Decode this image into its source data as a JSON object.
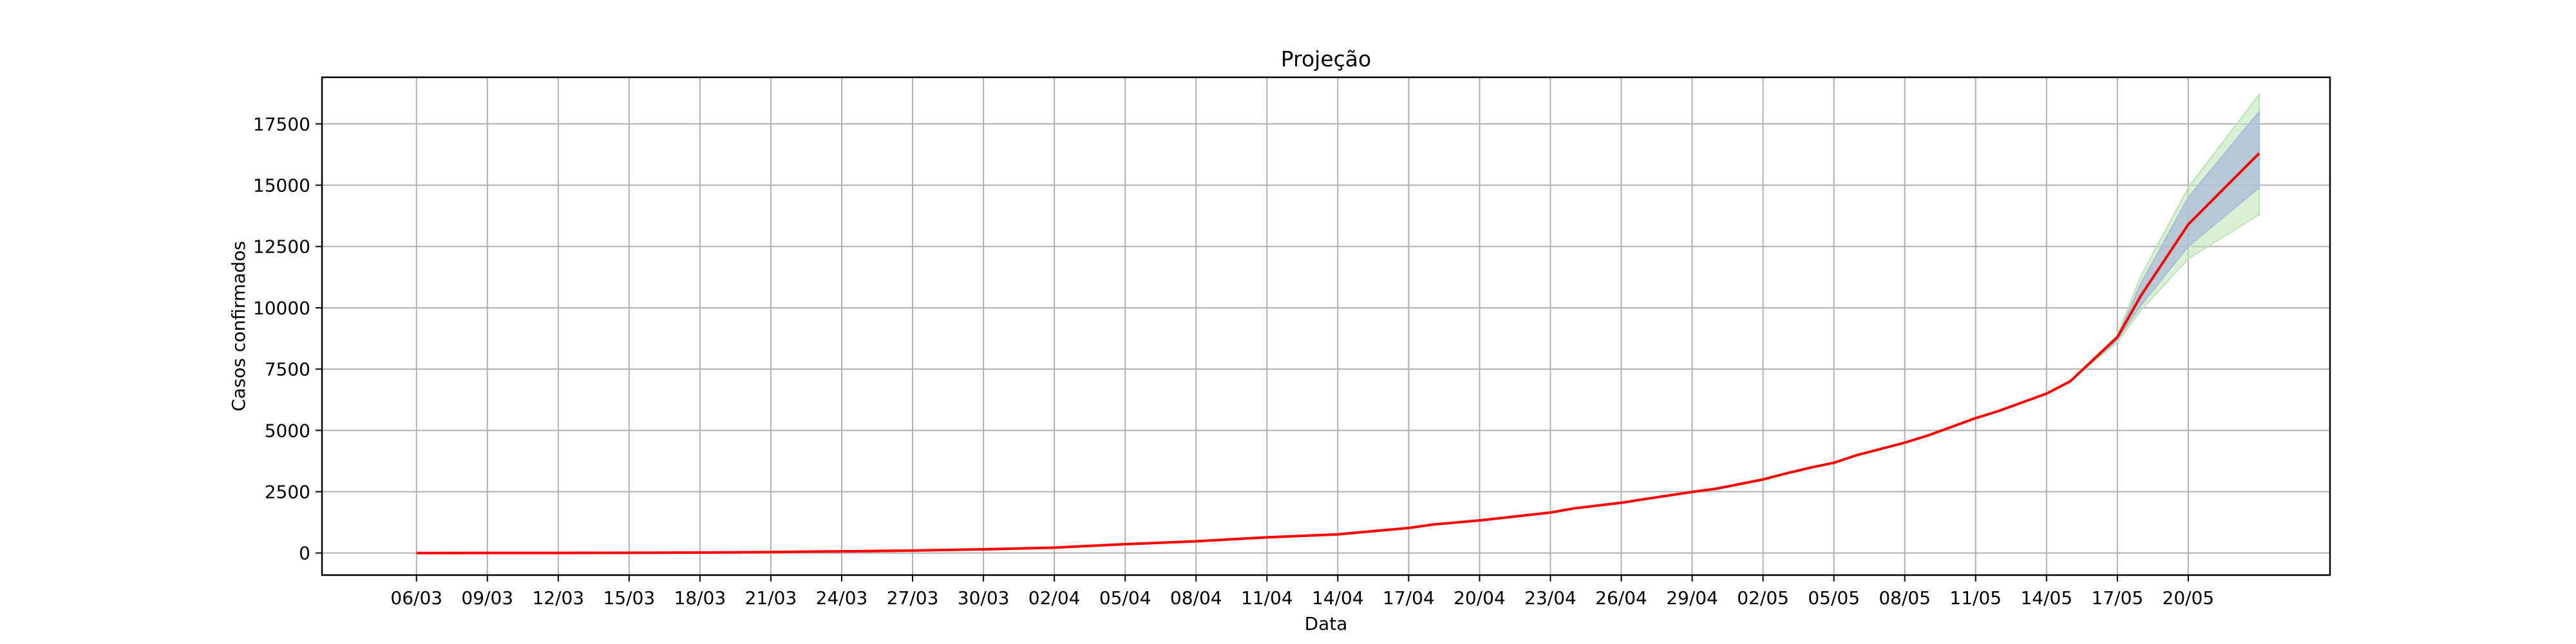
{
  "chart_data": {
    "type": "line",
    "title": "Projeção",
    "xlabel": "Data",
    "ylabel": "Casos confirmados",
    "grid": true,
    "colors": {
      "line": "#ff0000",
      "band_outer": "#b9e3b2",
      "band_inner": "#a8bcd6",
      "grid": "#b0b0b0",
      "frame": "#000000"
    },
    "x_ticks": [
      "06/03",
      "09/03",
      "12/03",
      "15/03",
      "18/03",
      "21/03",
      "24/03",
      "27/03",
      "30/03",
      "02/04",
      "05/04",
      "08/04",
      "11/04",
      "14/04",
      "17/04",
      "20/04",
      "23/04",
      "26/04",
      "29/04",
      "02/05",
      "05/05",
      "08/05",
      "11/05",
      "14/05",
      "17/05",
      "20/05"
    ],
    "y_ticks": [
      0,
      2500,
      5000,
      7500,
      10000,
      12500,
      15000,
      17500
    ],
    "xlim": [
      "02/03",
      "26/05"
    ],
    "ylim": [
      -900,
      19400
    ],
    "series": [
      {
        "values": [
          [
            "06/03",
            1
          ],
          [
            "09/03",
            2
          ],
          [
            "12/03",
            4
          ],
          [
            "15/03",
            8
          ],
          [
            "18/03",
            20
          ],
          [
            "21/03",
            40
          ],
          [
            "24/03",
            70
          ],
          [
            "27/03",
            100
          ],
          [
            "30/03",
            150
          ],
          [
            "02/04",
            220
          ],
          [
            "05/04",
            360
          ],
          [
            "08/04",
            480
          ],
          [
            "11/04",
            640
          ],
          [
            "14/04",
            760
          ],
          [
            "15/04",
            850
          ],
          [
            "17/04",
            1020
          ],
          [
            "18/04",
            1160
          ],
          [
            "20/04",
            1330
          ],
          [
            "23/04",
            1650
          ],
          [
            "24/04",
            1820
          ],
          [
            "26/04",
            2050
          ],
          [
            "27/04",
            2200
          ],
          [
            "29/04",
            2490
          ],
          [
            "30/04",
            2620
          ],
          [
            "02/05",
            3000
          ],
          [
            "03/05",
            3250
          ],
          [
            "04/05",
            3480
          ],
          [
            "05/05",
            3680
          ],
          [
            "06/05",
            4000
          ],
          [
            "08/05",
            4500
          ],
          [
            "09/05",
            4800
          ],
          [
            "11/05",
            5500
          ],
          [
            "12/05",
            5800
          ],
          [
            "14/05",
            6500
          ],
          [
            "15/05",
            7000
          ],
          [
            "17/05",
            8800
          ],
          [
            "18/05",
            10500
          ],
          [
            "20/05",
            13400
          ],
          [
            "23/05",
            16300
          ]
        ]
      }
    ],
    "band_outer": [
      [
        "15/05",
        7000,
        7000
      ],
      [
        "17/05",
        8600,
        8900
      ],
      [
        "18/05",
        9900,
        11300
      ],
      [
        "20/05",
        12000,
        14900
      ],
      [
        "23/05",
        13800,
        18700
      ]
    ],
    "band_inner": [
      [
        "15/05",
        7000,
        7000
      ],
      [
        "17/05",
        8700,
        8800
      ],
      [
        "18/05",
        10100,
        11000
      ],
      [
        "20/05",
        12500,
        14500
      ],
      [
        "23/05",
        14900,
        18000
      ]
    ]
  }
}
